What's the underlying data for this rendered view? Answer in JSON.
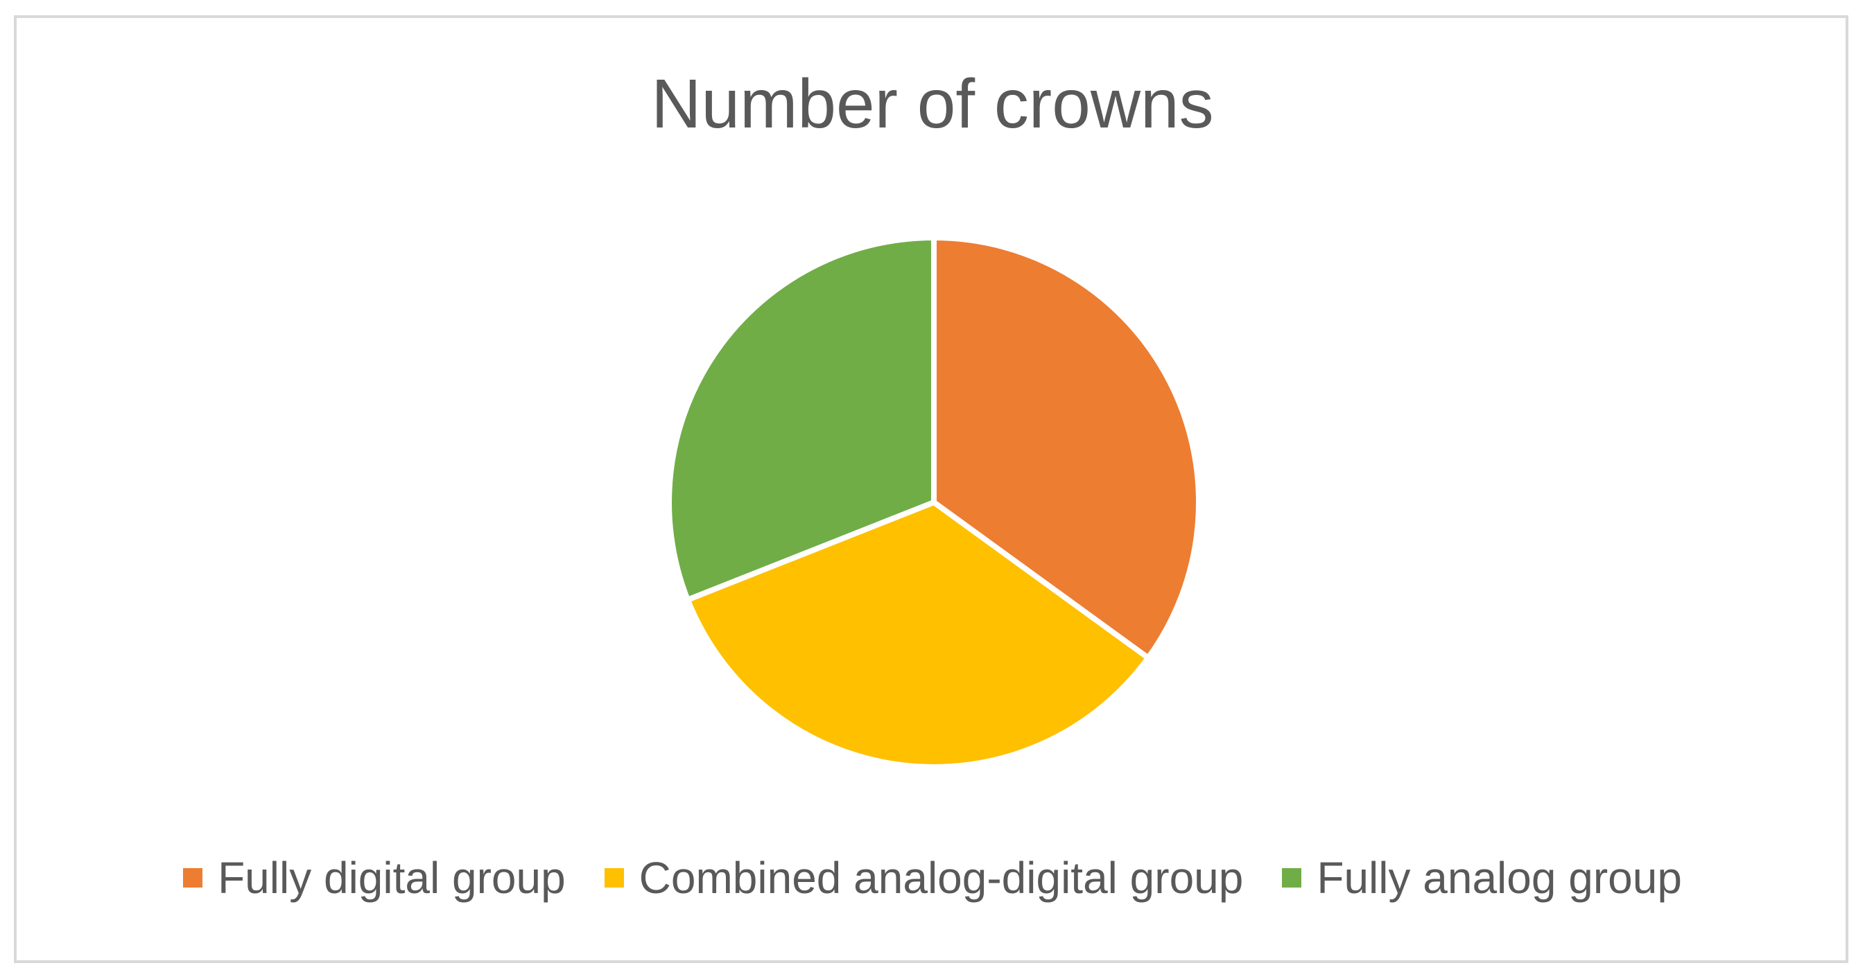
{
  "chart_data": {
    "type": "pie",
    "title": "Number of crowns",
    "categories": [
      "Fully digital group",
      "Combined analog-digital group",
      "Fully analog group"
    ],
    "values": [
      35,
      34,
      31
    ],
    "colors": [
      "#ED7D31",
      "#FFC000",
      "#70AD47"
    ],
    "start_angle_deg": 0,
    "direction": "clockwise",
    "legend_position": "bottom"
  }
}
